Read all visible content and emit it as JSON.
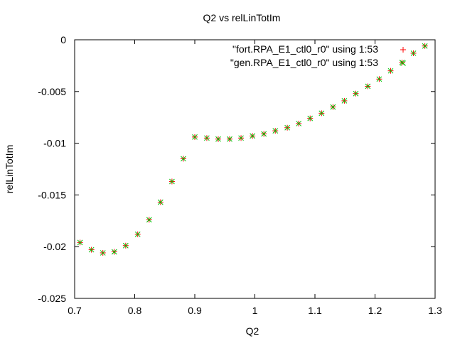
{
  "chart_data": {
    "type": "scatter",
    "title": "Q2 vs relLinTotIm",
    "xlabel": "Q2",
    "ylabel": "relLinTotIm",
    "xlim": [
      0.7,
      1.3
    ],
    "ylim": [
      -0.025,
      0
    ],
    "xticks": [
      0.7,
      0.8,
      0.9,
      1,
      1.1,
      1.2,
      1.3
    ],
    "xtick_labels": [
      "0.7",
      "0.8",
      "0.9",
      "1",
      "1.1",
      "1.2",
      "1.3"
    ],
    "yticks": [
      0,
      -0.005,
      -0.01,
      -0.015,
      -0.02,
      -0.025
    ],
    "ytick_labels": [
      "0",
      "-0.005",
      "-0.01",
      "-0.015",
      "-0.02",
      "-0.025"
    ],
    "grid": false,
    "legend_position": "top-right",
    "series": [
      {
        "name": "\"fort.RPA_E1_ctl0_r0\" using 1:53",
        "marker": "plus",
        "color": "#ff0000",
        "x": [
          0.709,
          0.728,
          0.747,
          0.766,
          0.785,
          0.805,
          0.824,
          0.843,
          0.862,
          0.881,
          0.9,
          0.92,
          0.939,
          0.958,
          0.977,
          0.996,
          1.015,
          1.034,
          1.054,
          1.073,
          1.092,
          1.111,
          1.13,
          1.149,
          1.168,
          1.188,
          1.207,
          1.226,
          1.245,
          1.264,
          1.283
        ],
        "y": [
          -0.0196,
          -0.0203,
          -0.0206,
          -0.0205,
          -0.0199,
          -0.0188,
          -0.0174,
          -0.0157,
          -0.0137,
          -0.0115,
          -0.0094,
          -0.0095,
          -0.0096,
          -0.0096,
          -0.0095,
          -0.0093,
          -0.0091,
          -0.0088,
          -0.0085,
          -0.0081,
          -0.0076,
          -0.0071,
          -0.0065,
          -0.0059,
          -0.0052,
          -0.0045,
          -0.0038,
          -0.003,
          -0.0022,
          -0.0013,
          -0.0006
        ]
      },
      {
        "name": "\"gen.RPA_E1_ctl0_r0\" using 1:53",
        "marker": "cross",
        "color": "#00c000",
        "x": [
          0.709,
          0.728,
          0.747,
          0.766,
          0.785,
          0.805,
          0.824,
          0.843,
          0.862,
          0.881,
          0.9,
          0.92,
          0.939,
          0.958,
          0.977,
          0.996,
          1.015,
          1.034,
          1.054,
          1.073,
          1.092,
          1.111,
          1.13,
          1.149,
          1.168,
          1.188,
          1.207,
          1.226,
          1.245,
          1.264,
          1.283
        ],
        "y": [
          -0.0196,
          -0.0203,
          -0.0206,
          -0.0205,
          -0.0199,
          -0.0188,
          -0.0174,
          -0.0157,
          -0.0137,
          -0.0115,
          -0.0094,
          -0.0095,
          -0.0096,
          -0.0096,
          -0.0095,
          -0.0093,
          -0.0091,
          -0.0088,
          -0.0085,
          -0.0081,
          -0.0076,
          -0.0071,
          -0.0065,
          -0.0059,
          -0.0052,
          -0.0045,
          -0.0038,
          -0.003,
          -0.0022,
          -0.0013,
          -0.0006
        ]
      }
    ]
  }
}
